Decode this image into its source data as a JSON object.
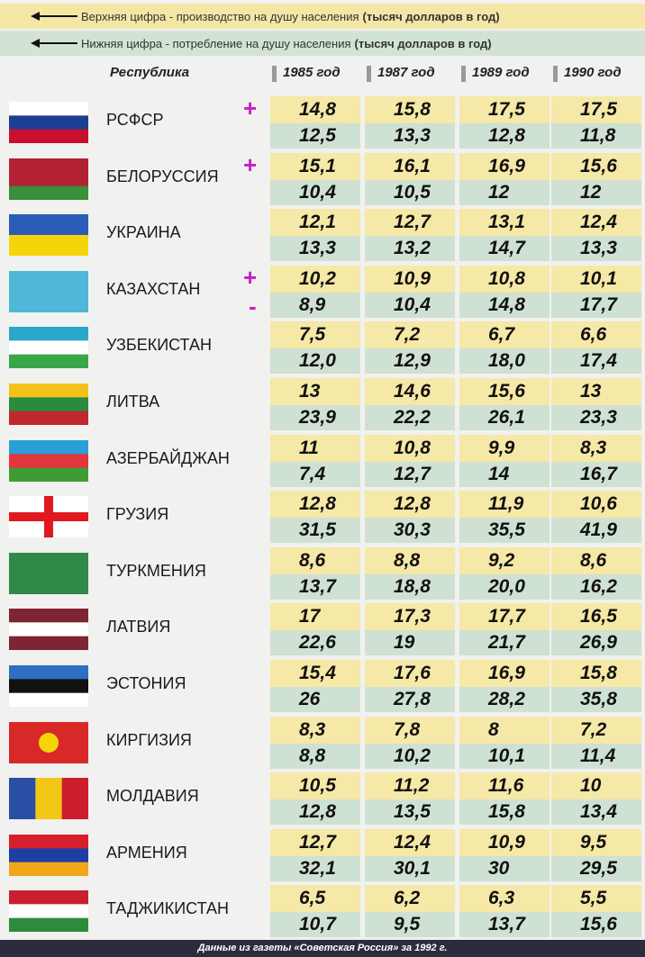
{
  "legend": [
    {
      "text": "Верхняя цифра - производство на душу населения",
      "unit": "(тысяч долларов в год)"
    },
    {
      "text": "Нижняя цифра - потребление на душу населения",
      "unit": "(тысяч долларов в год)"
    }
  ],
  "table": {
    "headers": [
      "Республика",
      "1985 год",
      "1987 год",
      "1989 год",
      "1990 год"
    ],
    "rows": [
      {
        "name": "РСФСР",
        "production": [
          "14,8",
          "15,8",
          "17,5",
          "17,5"
        ],
        "consumption": [
          "12,5",
          "13,3",
          "12,8",
          "11,8"
        ],
        "marks": [
          "+"
        ]
      },
      {
        "name": "БЕЛОРУССИЯ",
        "production": [
          "15,1",
          "16,1",
          "16,9",
          "15,6"
        ],
        "consumption": [
          "10,4",
          "10,5",
          "12",
          "12"
        ],
        "marks": [
          "+"
        ]
      },
      {
        "name": "УКРАИНА",
        "production": [
          "12,1",
          "12,7",
          "13,1",
          "12,4"
        ],
        "consumption": [
          "13,3",
          "13,2",
          "14,7",
          "13,3"
        ]
      },
      {
        "name": "КАЗАХСТАН",
        "production": [
          "10,2",
          "10,9",
          "10,8",
          "10,1"
        ],
        "consumption": [
          "8,9",
          "10,4",
          "14,8",
          "17,7"
        ],
        "marks": [
          "+",
          "-"
        ]
      },
      {
        "name": "УЗБЕКИСТАН",
        "production": [
          "7,5",
          "7,2",
          "6,7",
          "6,6"
        ],
        "consumption": [
          "12,0",
          "12,9",
          "18,0",
          "17,4"
        ]
      },
      {
        "name": "ЛИТВА",
        "production": [
          "13",
          "14,6",
          "15,6",
          "13"
        ],
        "consumption": [
          "23,9",
          "22,2",
          "26,1",
          "23,3"
        ]
      },
      {
        "name": "АЗЕРБАЙДЖАН",
        "production": [
          "11",
          "10,8",
          "9,9",
          "8,3"
        ],
        "consumption": [
          "7,4",
          "12,7",
          "14",
          "16,7"
        ]
      },
      {
        "name": "ГРУЗИЯ",
        "production": [
          "12,8",
          "12,8",
          "11,9",
          "10,6"
        ],
        "consumption": [
          "31,5",
          "30,3",
          "35,5",
          "41,9"
        ]
      },
      {
        "name": "ТУРКМЕНИЯ",
        "production": [
          "8,6",
          "8,8",
          "9,2",
          "8,6"
        ],
        "consumption": [
          "13,7",
          "18,8",
          "20,0",
          "16,2"
        ]
      },
      {
        "name": "ЛАТВИЯ",
        "production": [
          "17",
          "17,3",
          "17,7",
          "16,5"
        ],
        "consumption": [
          "22,6",
          "19",
          "21,7",
          "26,9"
        ]
      },
      {
        "name": "ЭСТОНИЯ",
        "production": [
          "15,4",
          "17,6",
          "16,9",
          "15,8"
        ],
        "consumption": [
          "26",
          "27,8",
          "28,2",
          "35,8"
        ]
      },
      {
        "name": "КИРГИЗИЯ",
        "production": [
          "8,3",
          "7,8",
          "8",
          "7,2"
        ],
        "consumption": [
          "8,8",
          "10,2",
          "10,1",
          "11,4"
        ]
      },
      {
        "name": "МОЛДАВИЯ",
        "production": [
          "10,5",
          "11,2",
          "11,6",
          "10"
        ],
        "consumption": [
          "12,8",
          "13,5",
          "15,8",
          "13,4"
        ]
      },
      {
        "name": "АРМЕНИЯ",
        "production": [
          "12,7",
          "12,4",
          "10,9",
          "9,5"
        ],
        "consumption": [
          "32,1",
          "30,1",
          "30",
          "29,5"
        ]
      },
      {
        "name": "ТАДЖИКИСТАН",
        "production": [
          "6,5",
          "6,2",
          "6,3",
          "5,5"
        ],
        "consumption": [
          "10,7",
          "9,5",
          "13,7",
          "15,6"
        ]
      }
    ]
  },
  "footer": "Данные из газеты «Советская Россия» за 1992 г."
}
